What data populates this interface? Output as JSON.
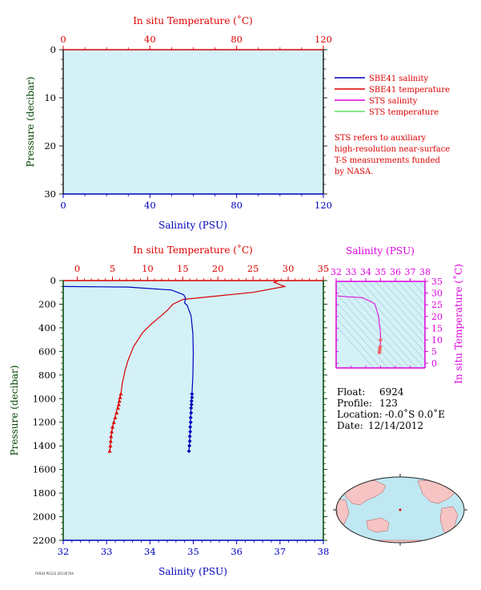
{
  "colors": {
    "temperature": "#dd0000",
    "salinity": "#0000bb",
    "sts_salinity": "#dd00dd",
    "sts_temperature": "#66dd66",
    "plot_bg": "#d3f1f7",
    "axis_green": "#004400",
    "land": "#f7c4c4",
    "ocean": "#bfe8f2"
  },
  "top_panel": {
    "top_axis_title": "In situ Temperature (˚C)",
    "top_ticks": [
      "0",
      "40",
      "80",
      "120"
    ],
    "left_axis_title": "Pressure (decibar)",
    "left_ticks": [
      "0",
      "10",
      "20",
      "30"
    ],
    "bottom_ticks": [
      "0",
      "40",
      "80",
      "120"
    ],
    "bottom_axis_title": "Salinity (PSU)"
  },
  "legend": {
    "items": [
      {
        "label": "SBE41 salinity",
        "color": "#0000bb"
      },
      {
        "label": "SBE41 temperature",
        "color": "#dd0000"
      },
      {
        "label": "STS salinity",
        "color": "#dd00dd"
      },
      {
        "label": "STS temperature",
        "color": "#66dd66"
      }
    ],
    "note_lines": [
      "STS refers to auxiliary",
      "high-resolution near-surface",
      "T-S measurements funded",
      "by NASA."
    ]
  },
  "main_panel": {
    "top_axis_title": "In situ Temperature (˚C)",
    "top_ticks": [
      "0",
      "5",
      "10",
      "15",
      "20",
      "25",
      "30",
      "35"
    ],
    "left_axis_title": "Pressure (decibar)",
    "left_ticks": [
      "0",
      "200",
      "400",
      "600",
      "800",
      "1000",
      "1200",
      "1400",
      "1600",
      "1800",
      "2000",
      "2200"
    ],
    "bottom_ticks": [
      "32",
      "33",
      "34",
      "35",
      "36",
      "37",
      "38"
    ],
    "bottom_axis_title": "Salinity (PSU)"
  },
  "inset": {
    "top_axis_title": "Salinity (PSU)",
    "top_ticks": [
      "32",
      "33",
      "34",
      "35",
      "36",
      "37",
      "38"
    ],
    "right_axis_title": "In situ Temperature (˚C)",
    "right_ticks": [
      "35",
      "30",
      "25",
      "20",
      "15",
      "10",
      "5",
      "0"
    ]
  },
  "float_info": {
    "float_label": "Float:",
    "float_value": "6924",
    "profile_label": "Profile:",
    "profile_value": "123",
    "location_label": "Location:",
    "location_value": "-0.0˚S   0.0˚E",
    "date_label": "Date:",
    "date_value": "12/14/2012"
  },
  "footer_tiny": "F6924 P0123 20130704",
  "chart_data": [
    {
      "type": "line",
      "title": "",
      "xlabel": "Salinity (PSU)",
      "x2label": "In situ Temperature (˚C)",
      "ylabel": "Pressure (decibar)",
      "xlim": [
        0,
        120
      ],
      "x2lim": [
        0,
        120
      ],
      "ylim": [
        30,
        0
      ],
      "series": [
        {
          "name": "SBE41 salinity",
          "x": [],
          "y": []
        },
        {
          "name": "SBE41 temperature",
          "x": [],
          "y": []
        },
        {
          "name": "STS salinity",
          "x": [],
          "y": []
        },
        {
          "name": "STS temperature",
          "x": [],
          "y": []
        }
      ]
    },
    {
      "type": "line",
      "title": "",
      "xlabel": "Salinity (PSU)",
      "x2label": "In situ Temperature (˚C)",
      "ylabel": "Pressure (decibar)",
      "xlim": [
        32,
        38
      ],
      "x2lim": [
        -2,
        35
      ],
      "ylim": [
        2200,
        0
      ],
      "series": [
        {
          "name": "SBE41 temperature",
          "x": [
            28.5,
            28.0,
            29.5,
            25.0,
            20.0,
            15.0,
            13.6,
            13.0,
            12.3,
            11.5,
            10.5,
            9.3,
            8.0,
            7.2,
            6.8,
            6.6,
            6.4,
            6.3,
            6.2,
            6.1,
            6.0,
            5.9,
            5.8,
            5.6,
            5.4,
            5.2,
            5.0,
            4.9,
            4.8,
            4.75,
            4.7,
            4.6
          ],
          "y": [
            5,
            15,
            50,
            100,
            130,
            160,
            200,
            240,
            280,
            320,
            370,
            440,
            560,
            680,
            760,
            820,
            870,
            920,
            960,
            980,
            1000,
            1030,
            1060,
            1100,
            1150,
            1200,
            1250,
            1290,
            1330,
            1370,
            1410,
            1445
          ]
        },
        {
          "name": "SBE41 salinity",
          "x": [
            32.0,
            33.5,
            34.5,
            34.78,
            34.82,
            34.8,
            34.86,
            34.95,
            34.99,
            35.0,
            34.99,
            34.97,
            34.95,
            34.94,
            34.93,
            34.92,
            34.91,
            34.9
          ],
          "y": [
            50,
            55,
            80,
            120,
            150,
            190,
            210,
            300,
            450,
            620,
            800,
            960,
            1050,
            1150,
            1250,
            1330,
            1400,
            1445
          ]
        },
        {
          "name": "SBE41 temperature points",
          "x": [
            6.2,
            6.1,
            6.0,
            5.9,
            5.8,
            5.6,
            5.4,
            5.2,
            5.0,
            4.9,
            4.8,
            4.75,
            4.7,
            4.6
          ],
          "y": [
            960,
            990,
            1020,
            1050,
            1080,
            1120,
            1160,
            1200,
            1240,
            1280,
            1320,
            1360,
            1400,
            1445
          ]
        },
        {
          "name": "SBE41 salinity points",
          "x": [
            34.97,
            34.97,
            34.96,
            34.96,
            34.95,
            34.95,
            34.94,
            34.94,
            34.93,
            34.93,
            34.92,
            34.92,
            34.91,
            34.9
          ],
          "y": [
            960,
            990,
            1020,
            1050,
            1080,
            1120,
            1160,
            1200,
            1240,
            1280,
            1320,
            1360,
            1400,
            1445
          ]
        }
      ]
    },
    {
      "type": "line",
      "title": "",
      "xlabel": "Salinity (PSU)",
      "ylabel": "In situ Temperature (˚C)",
      "xlim": [
        32,
        38
      ],
      "ylim": [
        -2,
        35
      ],
      "series": [
        {
          "name": "T-S curve",
          "x": [
            32.1,
            32.6,
            33.8,
            34.6,
            34.85,
            34.95,
            34.99,
            35.0,
            34.97,
            34.95,
            34.93,
            34.92
          ],
          "y": [
            28.8,
            28.5,
            28.0,
            25.5,
            20.5,
            15.5,
            13.0,
            10.0,
            7.0,
            6.0,
            5.2,
            4.6
          ]
        }
      ]
    }
  ]
}
